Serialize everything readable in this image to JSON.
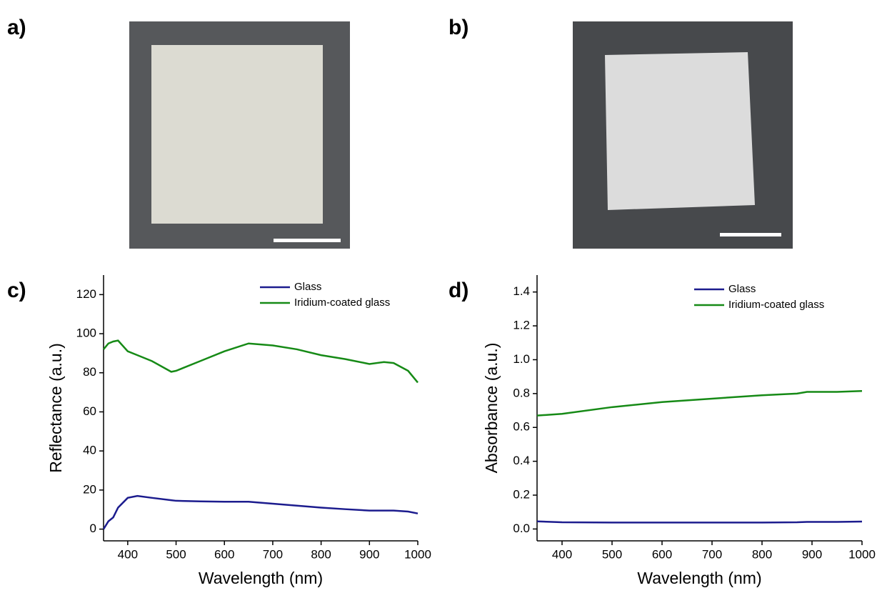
{
  "panel_labels": [
    "a)",
    "b)",
    "c)",
    "d)"
  ],
  "chart_data": [
    {
      "type": "line",
      "xlabel": "Wavelength (nm)",
      "ylabel": "Reflectance (a.u.)",
      "xlim": [
        350,
        1000
      ],
      "xticks": [
        400,
        500,
        600,
        700,
        800,
        900,
        1000
      ],
      "ylim": [
        -6,
        130
      ],
      "yticks": [
        0,
        20,
        40,
        60,
        80,
        100,
        120
      ],
      "x": [
        350,
        360,
        370,
        380,
        400,
        420,
        450,
        490,
        500,
        550,
        600,
        650,
        700,
        750,
        800,
        850,
        900,
        930,
        950,
        980,
        1000
      ],
      "series": [
        {
          "name": "Glass",
          "color": "#1c1c8e",
          "values": [
            0,
            4,
            6,
            11,
            16,
            17,
            16,
            14.8,
            14.5,
            14.2,
            14,
            14,
            13,
            12,
            11,
            10.2,
            9.5,
            9.5,
            9.5,
            9,
            8
          ]
        },
        {
          "name": "Iridium-coated glass",
          "color": "#168a16",
          "values": [
            92,
            95,
            96,
            96.5,
            91,
            89,
            86,
            80.5,
            81,
            86,
            91,
            95,
            94,
            92,
            89,
            87,
            84.5,
            85.5,
            85,
            81,
            75
          ]
        }
      ]
    },
    {
      "type": "line",
      "xlabel": "Wavelength (nm)",
      "ylabel": "Absorbance (a.u.)",
      "xlim": [
        350,
        1000
      ],
      "xticks": [
        400,
        500,
        600,
        700,
        800,
        900,
        1000
      ],
      "ylim": [
        -0.07,
        1.5
      ],
      "yticks": [
        {
          "value": 0,
          "label": "0.0"
        },
        0.2,
        0.4,
        0.6,
        0.8,
        {
          "value": 1,
          "label": "1.0"
        },
        1.2,
        1.4
      ],
      "x": [
        350,
        400,
        500,
        600,
        700,
        800,
        870,
        890,
        950,
        1000
      ],
      "series": [
        {
          "name": "Glass",
          "color": "#1c1c8e",
          "values": [
            0.045,
            0.04,
            0.038,
            0.038,
            0.038,
            0.038,
            0.04,
            0.042,
            0.042,
            0.044
          ]
        },
        {
          "name": "Iridium-coated glass",
          "color": "#168a16",
          "values": [
            0.67,
            0.68,
            0.72,
            0.75,
            0.77,
            0.79,
            0.8,
            0.81,
            0.81,
            0.815
          ]
        }
      ]
    }
  ]
}
